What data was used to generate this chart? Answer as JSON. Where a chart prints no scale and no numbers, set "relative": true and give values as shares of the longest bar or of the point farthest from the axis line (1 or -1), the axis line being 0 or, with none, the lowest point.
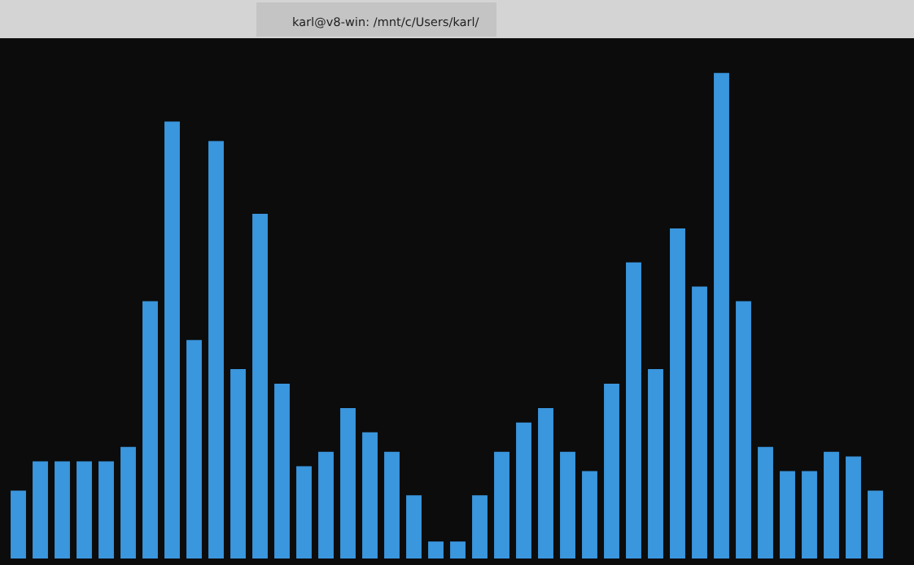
{
  "chart_data": {
    "type": "bar",
    "relative": true,
    "color": "#3a96dd",
    "categories": [
      null,
      null,
      null,
      null,
      null,
      null,
      null,
      null,
      null,
      null,
      null,
      null,
      null,
      null,
      null,
      null,
      null,
      null,
      null,
      null,
      null,
      null,
      null,
      null,
      null,
      null,
      null,
      null,
      null,
      null,
      null,
      null,
      null,
      null,
      null,
      null,
      null,
      null,
      null,
      null
    ],
    "values": [
      0.14,
      0.2,
      0.2,
      0.2,
      0.2,
      0.23,
      0.53,
      0.9,
      0.45,
      0.86,
      0.39,
      0.71,
      0.36,
      0.19,
      0.22,
      0.31,
      0.26,
      0.22,
      0.13,
      0.035,
      0.035,
      0.13,
      0.22,
      0.28,
      0.31,
      0.22,
      0.18,
      0.36,
      0.61,
      0.39,
      0.68,
      0.56,
      1,
      0.53,
      0.23,
      0.18,
      0.18,
      0.22,
      0.21,
      0.14
    ],
    "annotations": [
      "karl@v8-win: /mnt/c/Users/karl/"
    ]
  }
}
